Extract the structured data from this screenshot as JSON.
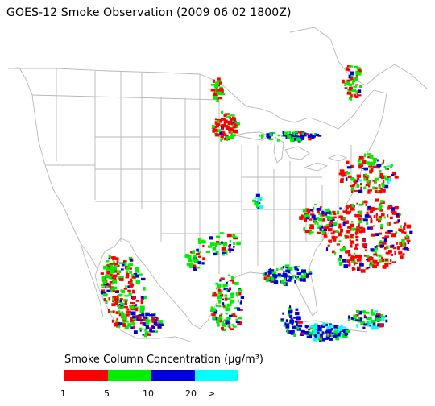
{
  "title": "GOES-12 Smoke Observation (2009 06 02  1800Z)",
  "map": {
    "region": "United States",
    "basemap_lines_color": "#b8b8b8",
    "background_color": "#ffffff"
  },
  "legend": {
    "title": "Smoke Column Concentration (μg/m³)",
    "ticks": [
      "1",
      "5",
      "10",
      "20",
      ">"
    ],
    "categories": [
      {
        "range": "1–5",
        "color": "#ff0000"
      },
      {
        "range": "5–10",
        "color": "#00ee00"
      },
      {
        "range": "10–20",
        "color": "#0000dd"
      },
      {
        "range": ">20",
        "color": "#00ffff"
      }
    ]
  }
}
